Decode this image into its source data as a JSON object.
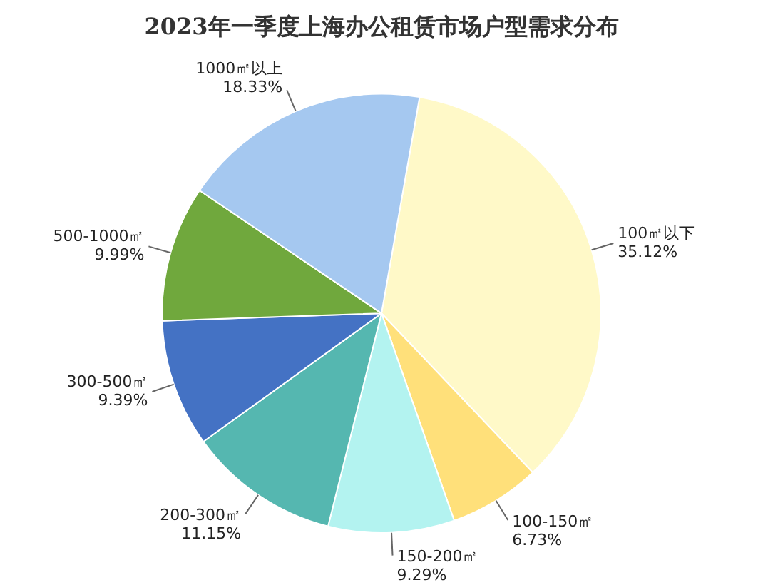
{
  "chart_data": {
    "type": "pie",
    "title": "2023年一季度上海办公租赁市场户型需求分布",
    "categories": [
      "100㎡以下",
      "100-150㎡",
      "150-200㎡",
      "200-300㎡",
      "300-500㎡",
      "500-1000㎡",
      "1000㎡以上"
    ],
    "values": [
      35.12,
      6.73,
      9.29,
      11.15,
      9.39,
      9.99,
      18.33
    ],
    "value_labels": [
      "35.12%",
      "6.73%",
      "9.29%",
      "11.15%",
      "9.39%",
      "9.99%",
      "18.33%"
    ],
    "colors": [
      "#fff9c8",
      "#ffe07a",
      "#b3f3f0",
      "#55b7b0",
      "#4472c4",
      "#70a83d",
      "#a5c8f0"
    ],
    "legend": false
  }
}
